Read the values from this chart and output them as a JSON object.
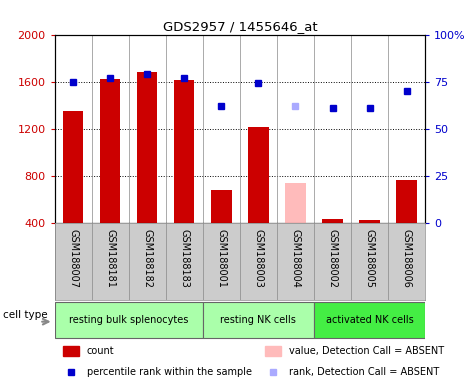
{
  "title": "GDS2957 / 1455646_at",
  "samples": [
    "GSM188007",
    "GSM188181",
    "GSM188182",
    "GSM188183",
    "GSM188001",
    "GSM188003",
    "GSM188004",
    "GSM188002",
    "GSM188005",
    "GSM188006"
  ],
  "counts": [
    1350,
    1620,
    1680,
    1610,
    680,
    1210,
    null,
    430,
    420,
    760
  ],
  "counts_absent": [
    null,
    null,
    null,
    null,
    null,
    null,
    740,
    null,
    null,
    null
  ],
  "percentile_ranks": [
    75,
    77,
    79,
    77,
    62,
    74,
    null,
    61,
    61,
    70
  ],
  "percentile_absent": [
    null,
    null,
    null,
    null,
    null,
    null,
    62,
    null,
    null,
    null
  ],
  "ylim_left": [
    400,
    2000
  ],
  "ylim_right": [
    0,
    100
  ],
  "yticks_left": [
    400,
    800,
    1200,
    1600,
    2000
  ],
  "ytick_labels_left": [
    "400",
    "800",
    "1200",
    "1600",
    "2000"
  ],
  "yticks_right": [
    0,
    25,
    50,
    75,
    100
  ],
  "ytick_labels_right": [
    "0",
    "25",
    "50",
    "75",
    "100%"
  ],
  "groups": [
    {
      "label": "resting bulk splenocytes",
      "start": 0,
      "end": 3,
      "color": "#aaffaa"
    },
    {
      "label": "resting NK cells",
      "start": 4,
      "end": 6,
      "color": "#aaffaa"
    },
    {
      "label": "activated NK cells",
      "start": 7,
      "end": 9,
      "color": "#44ee44"
    }
  ],
  "bar_color": "#cc0000",
  "bar_absent_color": "#ffbbbb",
  "dot_color": "#0000cc",
  "dot_absent_color": "#aaaaff",
  "bar_width": 0.55,
  "bg_color": "#cccccc",
  "plot_bg": "#ffffff",
  "cell_type_label": "cell type",
  "legend_items": [
    {
      "label": "count",
      "color": "#cc0000",
      "type": "bar"
    },
    {
      "label": "percentile rank within the sample",
      "color": "#0000cc",
      "type": "dot"
    },
    {
      "label": "value, Detection Call = ABSENT",
      "color": "#ffbbbb",
      "type": "bar"
    },
    {
      "label": "rank, Detection Call = ABSENT",
      "color": "#aaaaff",
      "type": "dot"
    }
  ]
}
